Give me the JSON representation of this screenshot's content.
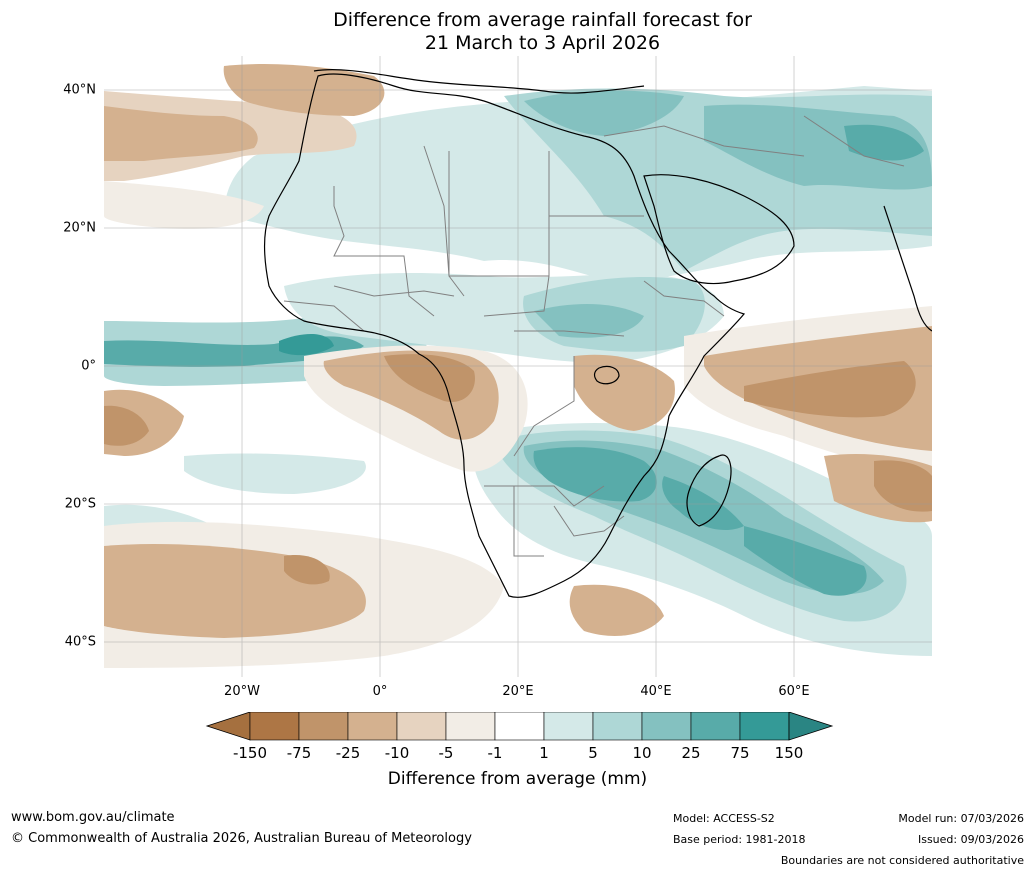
{
  "title": {
    "line1": "Difference from average rainfall forecast for",
    "line2": "21 March to 3 April 2026"
  },
  "map": {
    "region": "Africa",
    "latitude_labels": [
      "40°N",
      "20°N",
      "0°",
      "20°S",
      "40°S"
    ],
    "longitude_labels": [
      "20°W",
      "0°",
      "20°E",
      "40°E",
      "60°E"
    ],
    "icons": [
      "africa-land-outline-icon",
      "madagascar-outline-icon",
      "lake-victoria-icon"
    ]
  },
  "colorbar": {
    "ticks": [
      "-150",
      "-75",
      "-25",
      "-10",
      "-5",
      "-1",
      "1",
      "5",
      "10",
      "25",
      "75",
      "150"
    ],
    "colors": [
      "#a5703f",
      "#ad7645",
      "#c0946a",
      "#d4b18f",
      "#e6d3c0",
      "#f2ede6",
      "#ffffff",
      "#d4e9e8",
      "#aed7d6",
      "#84c1c0",
      "#58aba9",
      "#349a97",
      "#2a8583"
    ],
    "label": "Difference from average (mm)"
  },
  "footer": {
    "url": "www.bom.gov.au/climate",
    "copyright": "© Commonwealth of Australia 2026, Australian Bureau of Meteorology",
    "model": "Model: ACCESS-S2",
    "base_period": "Base period: 1981-2018",
    "model_run": "Model run: 07/03/2026",
    "issued": "Issued: 09/03/2026",
    "disclaimer": "Boundaries are not considered authoritative"
  }
}
